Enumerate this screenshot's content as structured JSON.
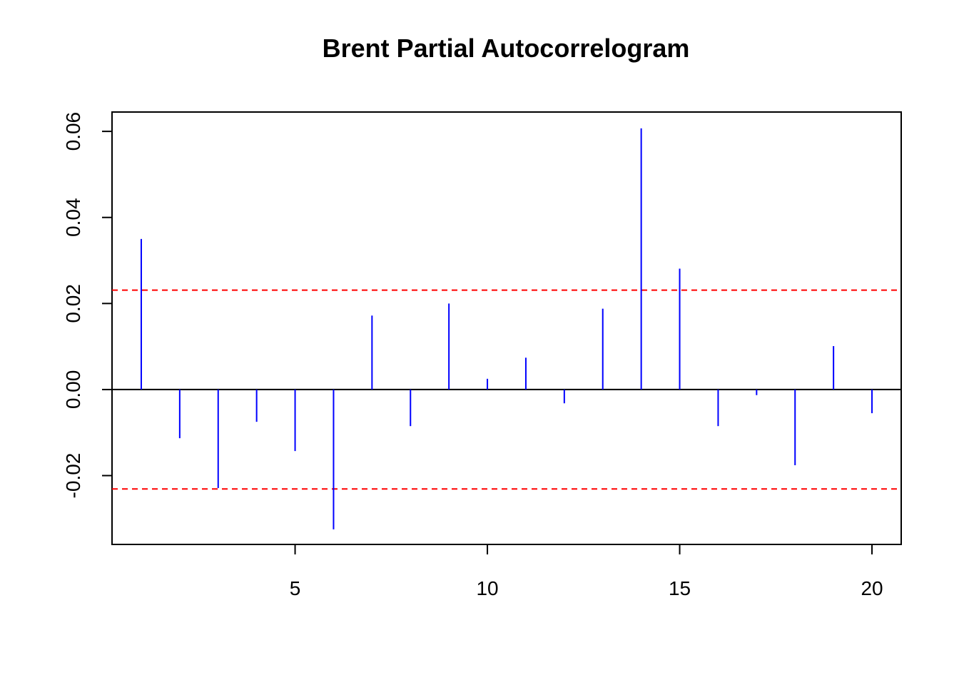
{
  "chart_data": {
    "type": "bar",
    "title": "Brent Partial Autocorrelogram",
    "xlabel": "",
    "ylabel": "",
    "x": [
      1,
      2,
      3,
      4,
      5,
      6,
      7,
      8,
      9,
      10,
      11,
      12,
      13,
      14,
      15,
      16,
      17,
      18,
      19,
      20
    ],
    "values": [
      0.035,
      -0.0113,
      -0.0229,
      -0.0075,
      -0.0143,
      -0.0325,
      0.0172,
      -0.0085,
      0.02,
      0.0025,
      0.0074,
      -0.0032,
      0.0188,
      0.0607,
      0.0281,
      -0.0085,
      -0.0013,
      -0.0176,
      0.0101,
      -0.0055
    ],
    "xlim": [
      0.24,
      20.76
    ],
    "ylim": [
      -0.036,
      0.0645
    ],
    "x_ticks": [
      5,
      10,
      15,
      20
    ],
    "x_tick_labels": [
      "5",
      "10",
      "15",
      "20"
    ],
    "y_ticks": [
      -0.02,
      0.0,
      0.02,
      0.04,
      0.06
    ],
    "y_tick_labels": [
      "-0.02",
      "0.00",
      "0.02",
      "0.04",
      "0.06"
    ],
    "confidence_bounds": [
      0.0231,
      -0.0231
    ],
    "zero_line": 0,
    "grid": false,
    "colors": {
      "bars": "#0000ff",
      "bounds": "#ff0000",
      "axis": "#000000"
    }
  }
}
